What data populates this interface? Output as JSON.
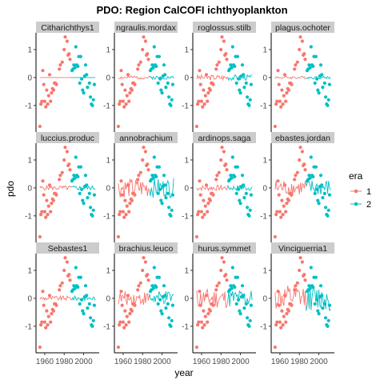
{
  "chart_data": {
    "type": "scatter",
    "title": "PDO: Region CalCOFI ichthyoplankton",
    "xlabel": "year",
    "ylabel": "pdo",
    "xlim": [
      1951,
      2016
    ],
    "ylim": [
      -1.95,
      1.6
    ],
    "x_ticks": [
      1960,
      1980,
      2000
    ],
    "x_tick_labels": [
      "1960",
      "1980",
      "2000"
    ],
    "y_ticks": [
      1,
      0,
      -1
    ],
    "y_tick_labels": [
      "1",
      "0",
      "-1"
    ],
    "grid": false,
    "legend": {
      "title": "era",
      "position": "right",
      "entries": [
        {
          "label": "1",
          "color": "#F8766D"
        },
        {
          "label": "2",
          "color": "#00BFC4"
        }
      ]
    },
    "era_split_year": 1987,
    "points": [
      [
        1955,
        -1.75
      ],
      [
        1956,
        -0.95
      ],
      [
        1957,
        -0.85
      ],
      [
        1958,
        0.25
      ],
      [
        1959,
        -0.25
      ],
      [
        1960,
        -0.85
      ],
      [
        1961,
        -1.05
      ],
      [
        1962,
        -0.45
      ],
      [
        1963,
        -0.95
      ],
      [
        1964,
        -0.65
      ],
      [
        1965,
        0.1
      ],
      [
        1966,
        -0.85
      ],
      [
        1967,
        -0.55
      ],
      [
        1968,
        -0.4
      ],
      [
        1969,
        -0.45
      ],
      [
        1970,
        -0.2
      ],
      [
        1971,
        -0.2
      ],
      [
        1972,
        -0.25
      ],
      [
        1975,
        0.3
      ],
      [
        1976,
        0.45
      ],
      [
        1978,
        0.55
      ],
      [
        1980,
        1.0
      ],
      [
        1981,
        1.45
      ],
      [
        1983,
        1.3
      ],
      [
        1984,
        0.8
      ],
      [
        1985,
        0.85
      ],
      [
        1986,
        0.65
      ],
      [
        1988,
        0.25
      ],
      [
        1989,
        0.3
      ],
      [
        1990,
        0.45
      ],
      [
        1991,
        0.35
      ],
      [
        1992,
        1.1
      ],
      [
        1993,
        0.45
      ],
      [
        1994,
        0.4
      ],
      [
        1995,
        0.75
      ],
      [
        1996,
        -0.2
      ],
      [
        1997,
        0.75
      ],
      [
        1998,
        -0.05
      ],
      [
        1999,
        -0.45
      ],
      [
        2000,
        -0.55
      ],
      [
        2001,
        0.05
      ],
      [
        2002,
        0.45
      ],
      [
        2003,
        0.1
      ],
      [
        2004,
        -0.35
      ],
      [
        2006,
        -0.2
      ],
      [
        2007,
        -0.7
      ],
      [
        2008,
        -0.95
      ],
      [
        2009,
        -1.0
      ],
      [
        2010,
        -0.8
      ],
      [
        2011,
        -0.25
      ]
    ],
    "panels": [
      {
        "title": "Citharichthys1",
        "amp": 0.0,
        "seed": 1
      },
      {
        "title": "ngraulis.mordax",
        "amp": 0.06,
        "seed": 2
      },
      {
        "title": "roglossus.stilb",
        "amp": 0.1,
        "seed": 3
      },
      {
        "title": "plagus.ochoter",
        "amp": 0.05,
        "seed": 4
      },
      {
        "title": "luccius.produc",
        "amp": 0.08,
        "seed": 5
      },
      {
        "title": "annobrachium",
        "amp": 0.35,
        "seed": 6
      },
      {
        "title": "ardinops.saga",
        "amp": 0.1,
        "seed": 7
      },
      {
        "title": "ebastes.jordan",
        "amp": 0.3,
        "seed": 8
      },
      {
        "title": "Sebastes1",
        "amp": 0.08,
        "seed": 9
      },
      {
        "title": "brachius.leuco",
        "amp": 0.25,
        "seed": 10
      },
      {
        "title": "hurus.symmet",
        "amp": 0.35,
        "seed": 11
      },
      {
        "title": "Vinciguerria1",
        "amp": 0.45,
        "seed": 12
      }
    ]
  }
}
